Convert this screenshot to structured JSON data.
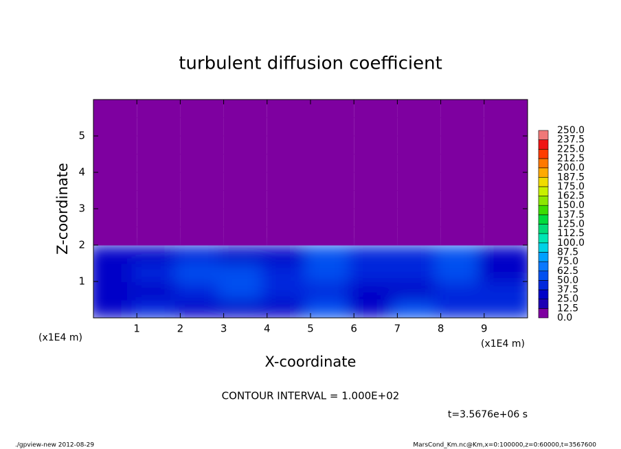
{
  "chart_data": {
    "type": "contour",
    "title": "turbulent diffusion coefficient",
    "x_label": "X-coordinate",
    "y_label": "Z-coordinate",
    "x_unit": "(x1E4 m)",
    "y_unit": "(x1E4 m)",
    "contour_interval": "CONTOUR INTERVAL = 1.000E+02",
    "time_label": "t=3.5676e+06 s",
    "footer_left": "./gpview-new  2012-08-29",
    "footer_right": "MarsCond_Km.nc@Km,x=0:100000,z=0:60000,t=3567600",
    "xlim": [
      0,
      10
    ],
    "ylim": [
      0,
      6
    ],
    "xticks": [
      1,
      2,
      3,
      4,
      5,
      6,
      7,
      8,
      9
    ],
    "yticks": [
      1,
      2,
      3,
      4,
      5
    ],
    "field": {
      "x": [
        0.5,
        1.5,
        2.5,
        3.5,
        4.5,
        5.5,
        6.5,
        7.5,
        8.5,
        9.5
      ],
      "z": [
        0.25,
        0.75,
        1.25,
        1.75,
        2.25,
        2.75,
        3.25,
        3.75,
        4.25,
        4.75,
        5.25,
        5.75
      ],
      "values": [
        [
          30,
          45,
          25,
          30,
          35,
          50,
          30,
          50,
          45,
          40
        ],
        [
          35,
          30,
          40,
          55,
          45,
          40,
          35,
          35,
          45,
          45
        ],
        [
          30,
          45,
          50,
          50,
          40,
          60,
          40,
          45,
          55,
          35
        ],
        [
          25,
          35,
          40,
          35,
          30,
          55,
          45,
          40,
          50,
          30
        ],
        [
          0,
          0,
          0,
          0,
          0,
          0,
          0,
          0,
          0,
          0
        ],
        [
          0,
          0,
          0,
          0,
          0,
          0,
          0,
          0,
          0,
          0
        ],
        [
          0,
          0,
          0,
          0,
          0,
          0,
          0,
          0,
          0,
          0
        ],
        [
          0,
          0,
          0,
          0,
          0,
          0,
          0,
          0,
          0,
          0
        ],
        [
          0,
          0,
          0,
          0,
          0,
          0,
          0,
          0,
          0,
          0
        ],
        [
          0,
          0,
          0,
          0,
          0,
          0,
          0,
          0,
          0,
          0
        ],
        [
          0,
          0,
          0,
          0,
          0,
          0,
          0,
          0,
          0,
          0
        ],
        [
          0,
          0,
          0,
          0,
          0,
          0,
          0,
          0,
          0,
          0
        ]
      ]
    },
    "levels": [
      {
        "value": 0,
        "label": "0.0"
      },
      12.5,
      {
        "value": 25,
        "label": "25.0"
      },
      37.5,
      {
        "value": 50,
        "label": "50.0"
      },
      62.5,
      {
        "value": 75,
        "label": "75.0"
      },
      87.5,
      {
        "value": 100,
        "label": "100.0"
      },
      112.5,
      {
        "value": 125,
        "label": "125.0"
      },
      137.5,
      {
        "value": 150,
        "label": "150.0"
      },
      162.5,
      {
        "value": 175,
        "label": "175.0"
      },
      187.5,
      {
        "value": 200,
        "label": "200.0"
      },
      212.5,
      {
        "value": 225,
        "label": "225.0"
      },
      237.5,
      {
        "value": 250,
        "label": "250.0"
      }
    ],
    "colors": [
      "#7e00a0",
      "#1e00b4",
      "#0000c8",
      "#0028dc",
      "#0050f0",
      "#0a78ff",
      "#00a0ff",
      "#00d2e6",
      "#00e6b4",
      "#00dc78",
      "#00dc3c",
      "#3cdc00",
      "#8ce600",
      "#c8f000",
      "#f0dc00",
      "#ffaa00",
      "#ff7800",
      "#ff3c00",
      "#f01414",
      "#f07878"
    ]
  }
}
